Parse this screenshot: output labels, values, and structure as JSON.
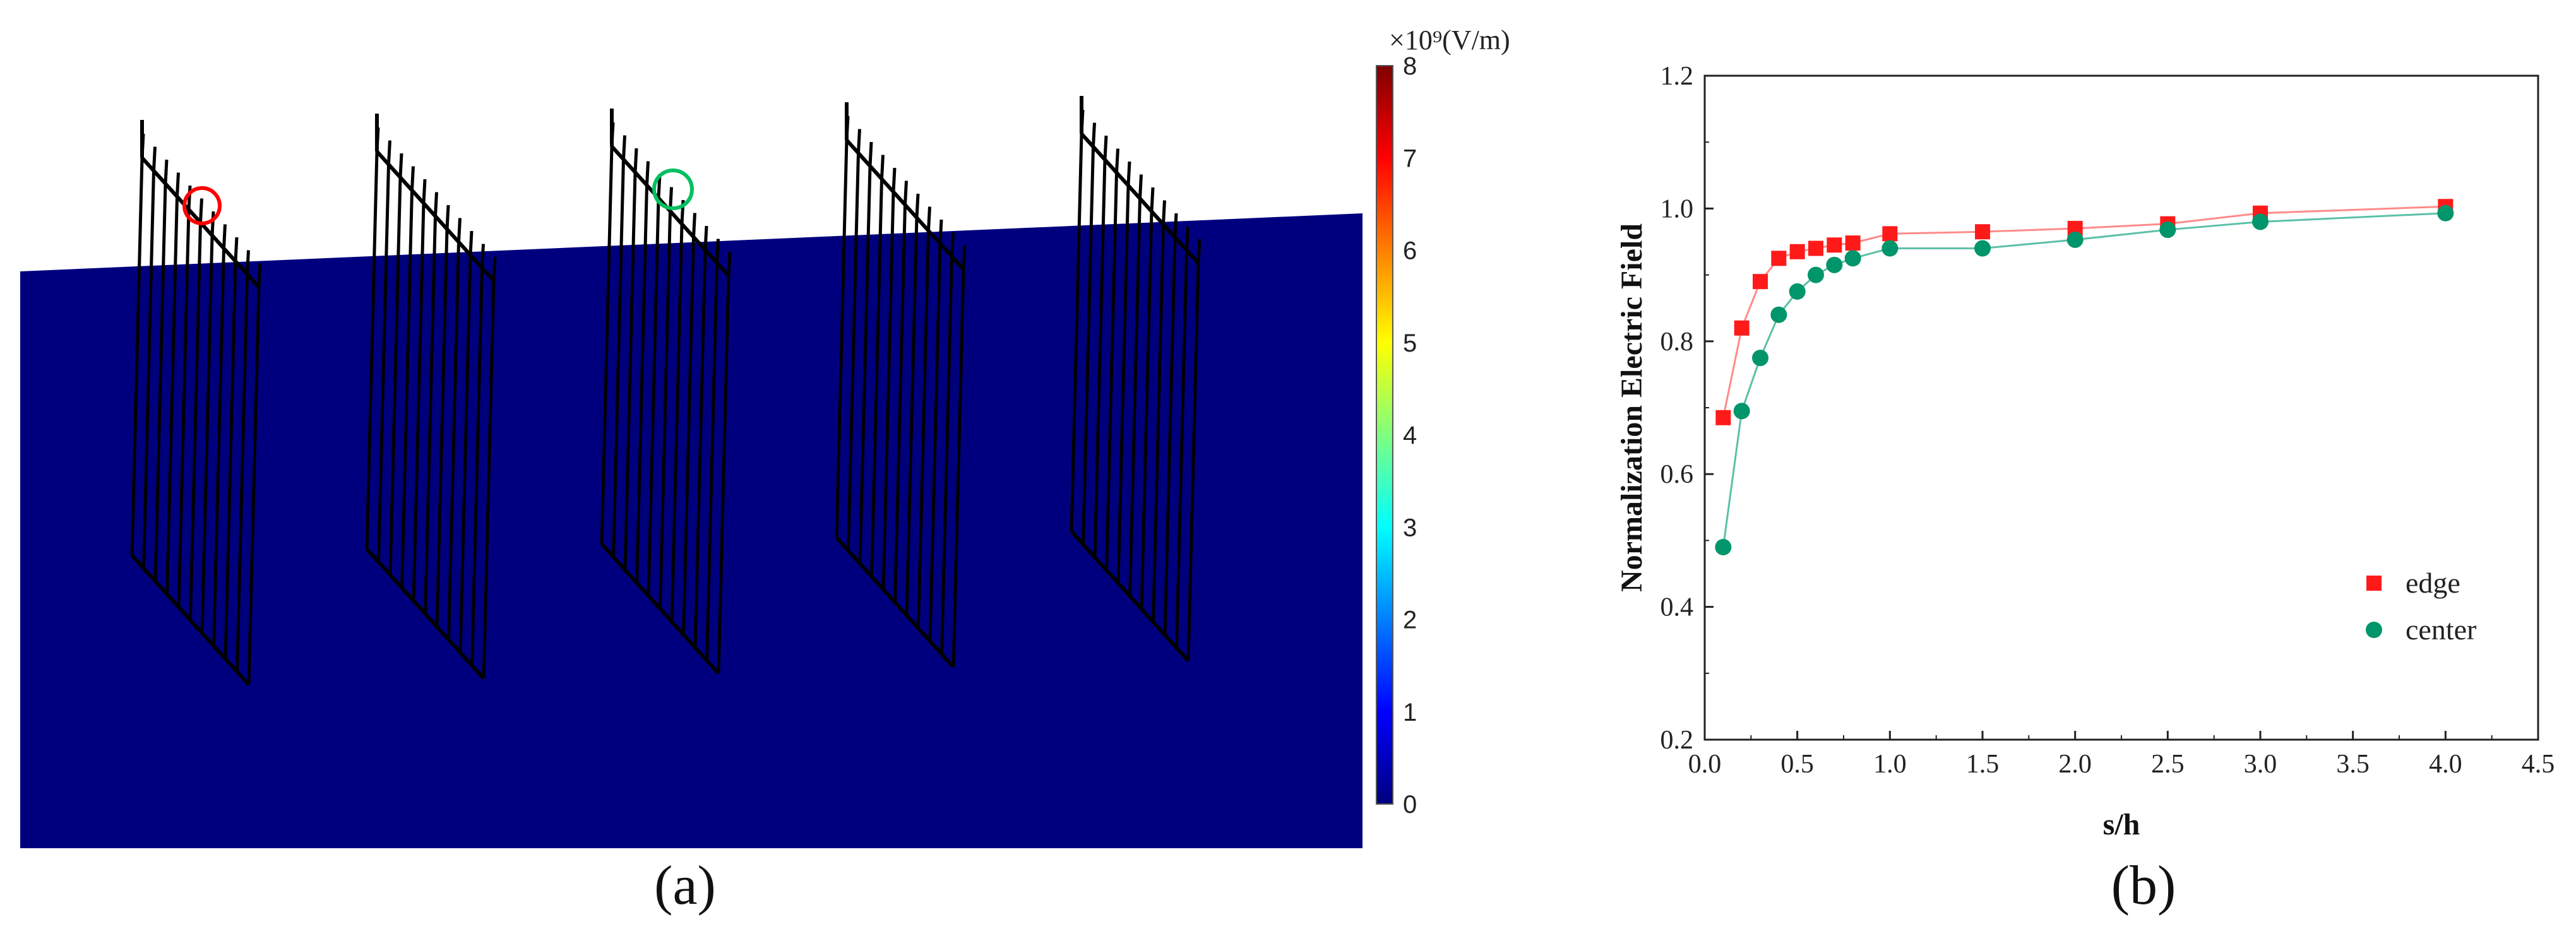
{
  "panel_a": {
    "label": "(a)",
    "colorbar": {
      "unit_label": "×10⁹(V/m)",
      "min": 0,
      "max": 8,
      "ticks": [
        "0",
        "1",
        "2",
        "3",
        "4",
        "5",
        "6",
        "7",
        "8"
      ],
      "colors": [
        "#00007f",
        "#0000ff",
        "#007fff",
        "#00ffff",
        "#7fff7f",
        "#ffff00",
        "#ff7f00",
        "#ff0000",
        "#7f0000"
      ]
    },
    "plate_color": "#00007f",
    "electrode_stroke": "#000000",
    "markers": [
      {
        "name": "edge-marker",
        "color": "#ff0000"
      },
      {
        "name": "center-marker",
        "color": "#00c060"
      }
    ]
  },
  "panel_b": {
    "label": "(b)"
  },
  "chart_data": {
    "type": "scatter",
    "xlabel": "s/h",
    "ylabel": "Normalization Electric Field",
    "xlim": [
      0,
      4.5
    ],
    "ylim": [
      0.2,
      1.2
    ],
    "xticks": [
      "0.0",
      "0.5",
      "1.0",
      "1.5",
      "2.0",
      "2.5",
      "3.0",
      "3.5",
      "4.0",
      "4.5"
    ],
    "yticks": [
      "0.2",
      "0.4",
      "0.6",
      "0.8",
      "1.0",
      "1.2"
    ],
    "grid": false,
    "legend": "right",
    "series": [
      {
        "name": "edge",
        "marker": "square",
        "color": "#ff1a1a",
        "line_color": "#ff8a8a",
        "x": [
          0.1,
          0.2,
          0.3,
          0.4,
          0.5,
          0.6,
          0.7,
          0.8,
          1.0,
          1.5,
          2.0,
          2.5,
          3.0,
          4.0
        ],
        "y": [
          0.685,
          0.82,
          0.89,
          0.925,
          0.935,
          0.94,
          0.945,
          0.948,
          0.962,
          0.965,
          0.97,
          0.977,
          0.993,
          1.003
        ]
      },
      {
        "name": "center",
        "marker": "circle",
        "color": "#00956a",
        "line_color": "#5cc0a8",
        "x": [
          0.1,
          0.2,
          0.3,
          0.4,
          0.5,
          0.6,
          0.7,
          0.8,
          1.0,
          1.5,
          2.0,
          2.5,
          3.0,
          4.0
        ],
        "y": [
          0.49,
          0.695,
          0.775,
          0.84,
          0.875,
          0.9,
          0.915,
          0.925,
          0.94,
          0.94,
          0.953,
          0.968,
          0.98,
          0.993
        ]
      }
    ]
  }
}
